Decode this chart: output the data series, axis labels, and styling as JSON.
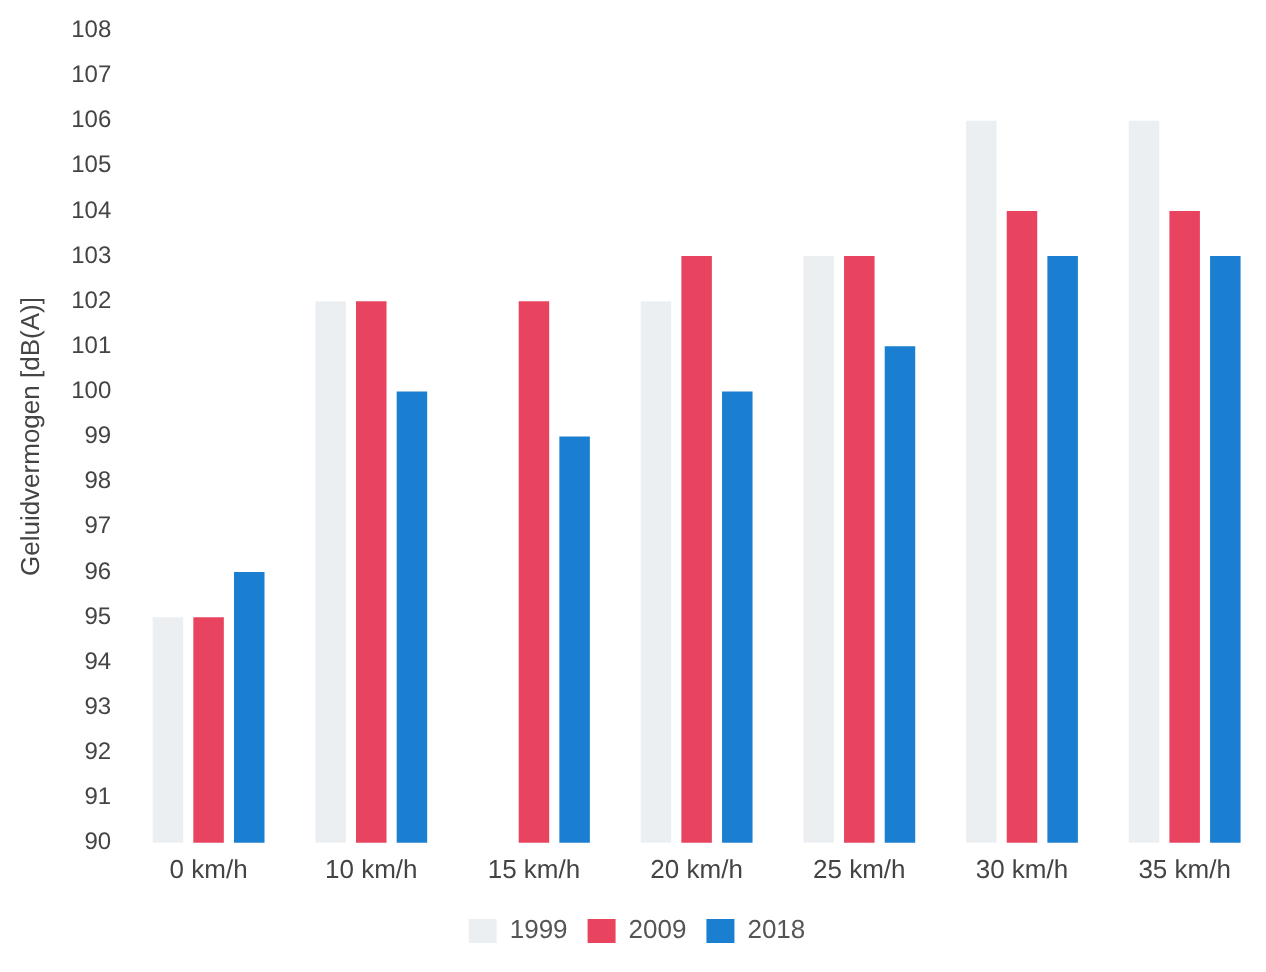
{
  "chart_data": {
    "type": "bar",
    "ylabel": "Geluidvermogen [dB(A)]",
    "categories": [
      "0 km/h",
      "10 km/h",
      "15 km/h",
      "20 km/h",
      "25 km/h",
      "30 km/h",
      "35 km/h"
    ],
    "series": [
      {
        "name": "1999",
        "color": "#eceff2",
        "values": [
          95,
          102,
          null,
          102,
          103,
          106,
          106
        ]
      },
      {
        "name": "2009",
        "color": "#e8435f",
        "values": [
          95,
          102,
          102,
          103,
          103,
          104,
          104
        ]
      },
      {
        "name": "2018",
        "color": "#1a7fd0",
        "values": [
          96,
          100,
          99,
          100,
          101,
          103,
          103
        ]
      }
    ],
    "ylim": [
      90,
      108
    ],
    "yticks": [
      90,
      91,
      92,
      93,
      94,
      95,
      96,
      97,
      98,
      99,
      100,
      101,
      102,
      103,
      104,
      105,
      106,
      107,
      108
    ],
    "grid": false,
    "legend": "bottom"
  }
}
